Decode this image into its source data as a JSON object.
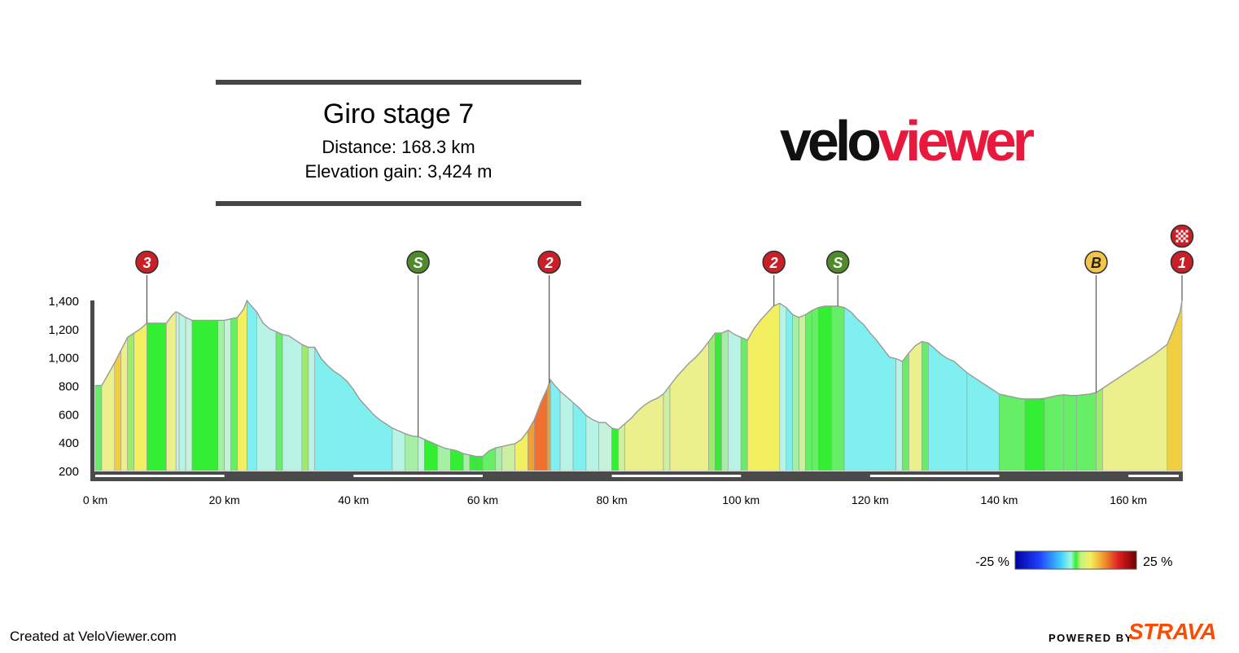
{
  "header": {
    "title": "Giro stage 7",
    "distance": "Distance: 168.3 km",
    "elevation_gain": "Elevation gain: 3,424 m"
  },
  "brand": {
    "velo": "velo",
    "viewer": "viewer",
    "velo_color": "#111111",
    "viewer_color": "#e8193c"
  },
  "footer": {
    "credit": "Created at VeloViewer.com",
    "powered_by": "POWERED BY",
    "strava": "STRAVA"
  },
  "chart_data": {
    "type": "area",
    "title": "",
    "xlabel": "",
    "ylabel": "",
    "x_unit": "km",
    "xlim": [
      0,
      168.3
    ],
    "ylim": [
      200,
      1400
    ],
    "x_ticks": [
      0,
      20,
      40,
      60,
      80,
      100,
      120,
      140,
      160
    ],
    "x_tick_labels": [
      "0 km",
      "20 km",
      "40 km",
      "60 km",
      "80 km",
      "100 km",
      "120 km",
      "140 km",
      "160 km"
    ],
    "y_ticks": [
      200,
      400,
      600,
      800,
      1000,
      1200,
      1400
    ],
    "y_tick_labels": [
      "200",
      "400",
      "600",
      "800",
      "1,000",
      "1,200",
      "1,400"
    ],
    "gradient_legend": {
      "min_label": "-25 %",
      "max_label": "25 %"
    },
    "gradient_colors": {
      "-12": "#7fefef",
      "-8": "#7fefef",
      "-5": "#b8f4e6",
      "-3": "#c6f2dc",
      "-1": "#a6f0a6",
      "0": "#33ee33",
      "1": "#66ee66",
      "2": "#99ee66",
      "3": "#cdf0a0",
      "4": "#ebf08c",
      "5": "#f2f060",
      "6": "#f2f060",
      "7": "#f0d040",
      "9": "#f0a030",
      "12": "#f07030"
    },
    "profile": [
      [
        0,
        800
      ],
      [
        1,
        800
      ],
      [
        2,
        880
      ],
      [
        3,
        960
      ],
      [
        4,
        1050
      ],
      [
        5,
        1140
      ],
      [
        6,
        1170
      ],
      [
        7,
        1200
      ],
      [
        8,
        1240
      ],
      [
        9,
        1240
      ],
      [
        10,
        1240
      ],
      [
        11,
        1240
      ],
      [
        12,
        1300
      ],
      [
        12.5,
        1320
      ],
      [
        13,
        1310
      ],
      [
        14,
        1280
      ],
      [
        14.5,
        1270
      ],
      [
        15,
        1260
      ],
      [
        18,
        1260
      ],
      [
        19,
        1260
      ],
      [
        20,
        1260
      ],
      [
        21,
        1270
      ],
      [
        22,
        1280
      ],
      [
        23,
        1340
      ],
      [
        23.5,
        1400
      ],
      [
        24,
        1370
      ],
      [
        25,
        1320
      ],
      [
        26,
        1240
      ],
      [
        27,
        1200
      ],
      [
        28,
        1180
      ],
      [
        29,
        1160
      ],
      [
        30,
        1150
      ],
      [
        31,
        1120
      ],
      [
        32,
        1090
      ],
      [
        33,
        1070
      ],
      [
        34,
        1070
      ],
      [
        35,
        990
      ],
      [
        36,
        940
      ],
      [
        37,
        900
      ],
      [
        38,
        870
      ],
      [
        39,
        830
      ],
      [
        40,
        770
      ],
      [
        41,
        700
      ],
      [
        42,
        650
      ],
      [
        43,
        600
      ],
      [
        44,
        560
      ],
      [
        45,
        530
      ],
      [
        46,
        500
      ],
      [
        47,
        480
      ],
      [
        48,
        460
      ],
      [
        49,
        445
      ],
      [
        50,
        440
      ],
      [
        51,
        420
      ],
      [
        52,
        400
      ],
      [
        53,
        380
      ],
      [
        54,
        360
      ],
      [
        55,
        350
      ],
      [
        56,
        340
      ],
      [
        57,
        320
      ],
      [
        58,
        310
      ],
      [
        59,
        300
      ],
      [
        60,
        300
      ],
      [
        61,
        340
      ],
      [
        62,
        360
      ],
      [
        63,
        370
      ],
      [
        64,
        380
      ],
      [
        65,
        390
      ],
      [
        66,
        420
      ],
      [
        67,
        480
      ],
      [
        68,
        560
      ],
      [
        69,
        680
      ],
      [
        70,
        780
      ],
      [
        70.5,
        840
      ],
      [
        71,
        810
      ],
      [
        72,
        760
      ],
      [
        73,
        720
      ],
      [
        74,
        680
      ],
      [
        75,
        640
      ],
      [
        76,
        590
      ],
      [
        77,
        560
      ],
      [
        78,
        540
      ],
      [
        79,
        540
      ],
      [
        80,
        500
      ],
      [
        81,
        490
      ],
      [
        82,
        530
      ],
      [
        83,
        570
      ],
      [
        84,
        620
      ],
      [
        85,
        660
      ],
      [
        86,
        690
      ],
      [
        87,
        710
      ],
      [
        88,
        740
      ],
      [
        89,
        800
      ],
      [
        90,
        860
      ],
      [
        91,
        910
      ],
      [
        92,
        960
      ],
      [
        93,
        1000
      ],
      [
        94,
        1050
      ],
      [
        95,
        1110
      ],
      [
        96,
        1170
      ],
      [
        97,
        1170
      ],
      [
        98,
        1190
      ],
      [
        99,
        1160
      ],
      [
        100,
        1140
      ],
      [
        101,
        1120
      ],
      [
        102,
        1200
      ],
      [
        103,
        1260
      ],
      [
        104,
        1310
      ],
      [
        105,
        1360
      ],
      [
        106,
        1380
      ],
      [
        107,
        1350
      ],
      [
        108,
        1300
      ],
      [
        109,
        1280
      ],
      [
        110,
        1300
      ],
      [
        111,
        1330
      ],
      [
        112,
        1350
      ],
      [
        113,
        1360
      ],
      [
        114,
        1360
      ],
      [
        115,
        1360
      ],
      [
        116,
        1350
      ],
      [
        117,
        1320
      ],
      [
        118,
        1270
      ],
      [
        119,
        1230
      ],
      [
        120,
        1170
      ],
      [
        121,
        1120
      ],
      [
        122,
        1060
      ],
      [
        123,
        1000
      ],
      [
        124,
        990
      ],
      [
        125,
        970
      ],
      [
        126,
        1030
      ],
      [
        127,
        1080
      ],
      [
        128,
        1110
      ],
      [
        129,
        1100
      ],
      [
        130,
        1060
      ],
      [
        131,
        1020
      ],
      [
        132,
        990
      ],
      [
        133,
        970
      ],
      [
        134,
        930
      ],
      [
        135,
        890
      ],
      [
        136,
        860
      ],
      [
        137,
        830
      ],
      [
        138,
        800
      ],
      [
        139,
        770
      ],
      [
        140,
        740
      ],
      [
        141,
        730
      ],
      [
        142,
        720
      ],
      [
        143,
        710
      ],
      [
        144,
        705
      ],
      [
        145,
        705
      ],
      [
        146,
        705
      ],
      [
        147,
        710
      ],
      [
        148,
        720
      ],
      [
        149,
        730
      ],
      [
        150,
        735
      ],
      [
        151,
        730
      ],
      [
        152,
        730
      ],
      [
        153,
        735
      ],
      [
        154,
        740
      ],
      [
        155,
        750
      ],
      [
        156,
        780
      ],
      [
        158,
        840
      ],
      [
        160,
        900
      ],
      [
        162,
        960
      ],
      [
        164,
        1020
      ],
      [
        166,
        1090
      ],
      [
        167,
        1200
      ],
      [
        168,
        1320
      ],
      [
        168.3,
        1400
      ]
    ],
    "segments": [
      [
        0,
        1,
        1
      ],
      [
        1,
        3,
        4
      ],
      [
        3,
        4,
        7
      ],
      [
        4,
        5,
        4
      ],
      [
        5,
        6,
        2
      ],
      [
        6,
        8,
        5
      ],
      [
        8,
        11,
        0
      ],
      [
        11,
        12.5,
        4
      ],
      [
        12.5,
        13,
        -3
      ],
      [
        13,
        14,
        -5
      ],
      [
        14,
        15,
        -3
      ],
      [
        15,
        19,
        0
      ],
      [
        19,
        20,
        -1
      ],
      [
        20,
        21,
        -3
      ],
      [
        21,
        22,
        1
      ],
      [
        22,
        23.5,
        6
      ],
      [
        23.5,
        25,
        -8
      ],
      [
        25,
        28,
        -5
      ],
      [
        28,
        29,
        1
      ],
      [
        29,
        32,
        -5
      ],
      [
        32,
        33,
        2
      ],
      [
        33,
        34,
        -5
      ],
      [
        34,
        46,
        -8
      ],
      [
        46,
        48,
        -5
      ],
      [
        48,
        50,
        -1
      ],
      [
        50,
        51,
        -3
      ],
      [
        51,
        53,
        0
      ],
      [
        53,
        55,
        -1
      ],
      [
        55,
        57,
        0
      ],
      [
        57,
        58,
        -1
      ],
      [
        58,
        59,
        0
      ],
      [
        59,
        60,
        0
      ],
      [
        60,
        62,
        1
      ],
      [
        62,
        63,
        -1
      ],
      [
        63,
        65,
        3
      ],
      [
        65,
        67,
        5
      ],
      [
        67,
        68,
        9
      ],
      [
        68,
        70,
        12
      ],
      [
        70,
        70.5,
        9
      ],
      [
        70.5,
        72,
        -8
      ],
      [
        72,
        74,
        -5
      ],
      [
        74,
        76,
        -8
      ],
      [
        76,
        78,
        -5
      ],
      [
        78,
        80,
        -3
      ],
      [
        80,
        81,
        0
      ],
      [
        81,
        82,
        3
      ],
      [
        82,
        88,
        4
      ],
      [
        88,
        89,
        3
      ],
      [
        89,
        95,
        4
      ],
      [
        95,
        96,
        2
      ],
      [
        96,
        97,
        0
      ],
      [
        97,
        98,
        -1
      ],
      [
        98,
        100,
        -5
      ],
      [
        100,
        101,
        1
      ],
      [
        101,
        106,
        5
      ],
      [
        106,
        107,
        -5
      ],
      [
        107,
        108,
        -8
      ],
      [
        108,
        109,
        -1
      ],
      [
        109,
        110,
        3
      ],
      [
        110,
        111,
        1
      ],
      [
        111,
        112,
        1
      ],
      [
        112,
        114,
        0
      ],
      [
        114,
        116,
        1
      ],
      [
        116,
        124,
        -8
      ],
      [
        124,
        125,
        -5
      ],
      [
        125,
        126,
        1
      ],
      [
        126,
        128,
        4
      ],
      [
        128,
        129,
        1
      ],
      [
        129,
        135,
        -8
      ],
      [
        135,
        140,
        -8
      ],
      [
        140,
        144,
        1
      ],
      [
        144,
        147,
        0
      ],
      [
        147,
        150,
        1
      ],
      [
        150,
        152,
        1
      ],
      [
        152,
        155,
        1
      ],
      [
        155,
        156,
        2
      ],
      [
        156,
        166,
        4
      ],
      [
        166,
        168.3,
        7
      ]
    ],
    "climbs": [
      {
        "km": 8,
        "label": "3",
        "type": "cat"
      },
      {
        "km": 50,
        "label": "S",
        "type": "sprint"
      },
      {
        "km": 70.3,
        "label": "2",
        "type": "cat"
      },
      {
        "km": 105.1,
        "label": "2",
        "type": "cat"
      },
      {
        "km": 115,
        "label": "S",
        "type": "sprint"
      },
      {
        "km": 155,
        "label": "B",
        "type": "bonus"
      },
      {
        "km": 168.3,
        "label": "1",
        "type": "cat"
      }
    ],
    "finish": {
      "km": 168.3
    },
    "marker_colors": {
      "cat": "#c91f26",
      "sprint": "#4f8a2b",
      "bonus": "#f3c54a"
    }
  }
}
